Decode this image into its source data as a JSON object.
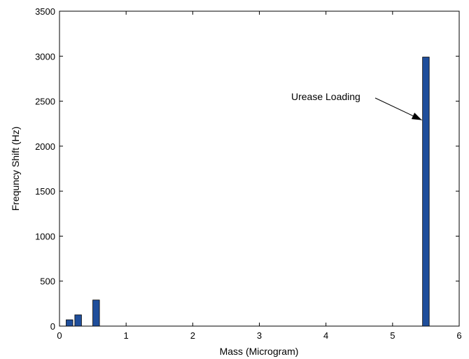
{
  "chart_data": {
    "type": "bar",
    "title": "",
    "xlabel": "Mass (Microgram)",
    "ylabel": "Frequncy Shift (Hz)",
    "xlim": [
      0,
      6
    ],
    "ylim": [
      0,
      3500
    ],
    "xticks": [
      0,
      1,
      2,
      3,
      4,
      5,
      6
    ],
    "yticks": [
      0,
      500,
      1000,
      1500,
      2000,
      2500,
      3000,
      3500
    ],
    "grid": false,
    "bar_color": "#1f4e9b",
    "bars": [
      {
        "x": 0.1,
        "width": 0.1,
        "value": 70
      },
      {
        "x": 0.23,
        "width": 0.1,
        "value": 125
      },
      {
        "x": 0.5,
        "width": 0.1,
        "value": 290
      },
      {
        "x": 5.45,
        "width": 0.1,
        "value": 2990
      }
    ],
    "annotation": {
      "text": "Urease Loading",
      "target": {
        "x": 5.45,
        "y": 2290
      }
    }
  }
}
